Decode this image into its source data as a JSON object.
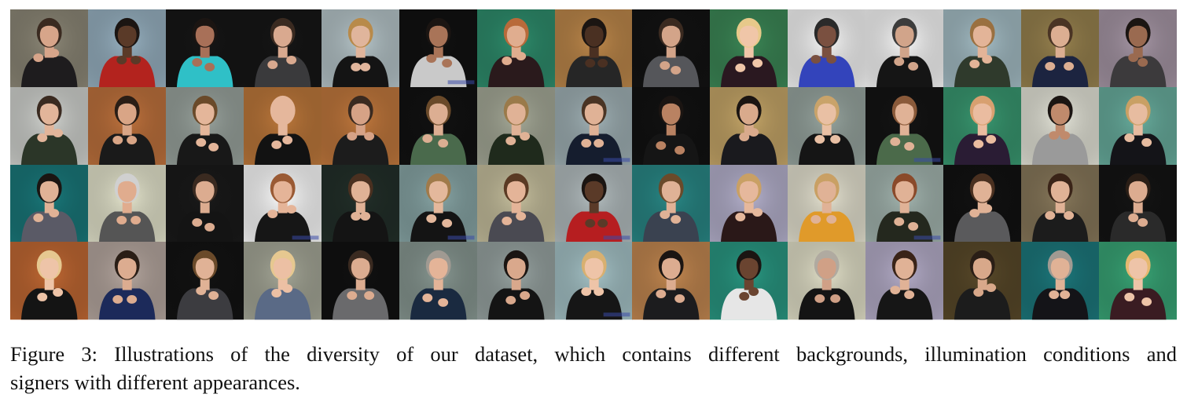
{
  "figure": {
    "rows": 4,
    "cols": 15,
    "cells": [
      {
        "bg": "#8f8a79",
        "shirt": "#1e1c1e",
        "skin": "#d7a58a",
        "hair": "#3a2a20",
        "wm": false
      },
      {
        "bg": "#9ab4c4",
        "shirt": "#b3231e",
        "skin": "#5a3a28",
        "hair": "#1b1512",
        "wm": false
      },
      {
        "bg": "#161616",
        "shirt": "#2fc0c7",
        "skin": "#a87058",
        "hair": "#1b1512",
        "wm": false
      },
      {
        "bg": "#161616",
        "shirt": "#3a3a3c",
        "skin": "#d9a98f",
        "hair": "#3a2a20",
        "wm": false
      },
      {
        "bg": "#b9c8cc",
        "shirt": "#141414",
        "skin": "#e0b59c",
        "hair": "#b88a4a",
        "wm": false
      },
      {
        "bg": "#111111",
        "shirt": "#c9c9c9",
        "skin": "#a97458",
        "hair": "#1b1512",
        "wm": true
      },
      {
        "bg": "#2f8f6e",
        "shirt": "#2a1a1c",
        "skin": "#e0ad8f",
        "hair": "#b86a3a",
        "wm": false
      },
      {
        "bg": "#c08a4c",
        "shirt": "#262626",
        "skin": "#4a3022",
        "hair": "#1b1512",
        "wm": false
      },
      {
        "bg": "#131313",
        "shirt": "#55565a",
        "skin": "#d3a489",
        "hair": "#3a2a20",
        "wm": false
      },
      {
        "bg": "#3d8a58",
        "shirt": "#2a1820",
        "skin": "#f0c6a8",
        "hair": "#e7c98a",
        "wm": false
      },
      {
        "bg": "#fafafa",
        "shirt": "#3344bb",
        "skin": "#7a5040",
        "hair": "#2a2a2a",
        "wm": false
      },
      {
        "bg": "#fbfbfb",
        "shirt": "#151515",
        "skin": "#d1a48a",
        "hair": "#3c3c3c",
        "wm": false
      },
      {
        "bg": "#a7c0c8",
        "shirt": "#2f3a2c",
        "skin": "#e3b498",
        "hair": "#9a7040",
        "wm": false
      },
      {
        "bg": "#9a8450",
        "shirt": "#1c2440",
        "skin": "#dcae92",
        "hair": "#4a3424",
        "wm": false
      },
      {
        "bg": "#a999a8",
        "shirt": "#3c3a3c",
        "skin": "#9a6a50",
        "hair": "#1b1512",
        "wm": false
      },
      {
        "bg": "#d4d6d2",
        "shirt": "#2b3628",
        "skin": "#e2b59a",
        "hair": "#3a2a20",
        "wm": false
      },
      {
        "bg": "#c2743e",
        "shirt": "#1a1a1a",
        "skin": "#d9a586",
        "hair": "#2a1e16",
        "wm": false
      },
      {
        "bg": "#9ca6a0",
        "shirt": "#181818",
        "skin": "#e4b69a",
        "hair": "#6a4a2a",
        "wm": false
      },
      {
        "bg": "#c07a3c",
        "shirt": "#121212",
        "skin": "#e5b79c",
        "hair": "#e5b79c",
        "wm": false
      },
      {
        "bg": "#c47a3e",
        "shirt": "#1c1c1c",
        "skin": "#d6a286",
        "hair": "#3a2a20",
        "wm": false
      },
      {
        "bg": "#121212",
        "shirt": "#4a6a4c",
        "skin": "#dcae92",
        "hair": "#6a4a2a",
        "wm": false
      },
      {
        "bg": "#a8ac9a",
        "shirt": "#1f2a1c",
        "skin": "#e0b296",
        "hair": "#9a7a4a",
        "wm": false
      },
      {
        "bg": "#a3b4b8",
        "shirt": "#151d2e",
        "skin": "#e0b296",
        "hair": "#4a3424",
        "wm": true
      },
      {
        "bg": "#121212",
        "shirt": "#151515",
        "skin": "#b98262",
        "hair": "#1b1512",
        "wm": false
      },
      {
        "bg": "#c9a96a",
        "shirt": "#1a1a1e",
        "skin": "#d9aa8c",
        "hair": "#1b1512",
        "wm": false
      },
      {
        "bg": "#9aa8a2",
        "shirt": "#151515",
        "skin": "#e9c0a4",
        "hair": "#c9a36a",
        "wm": false
      },
      {
        "bg": "#141414",
        "shirt": "#4b6a4a",
        "skin": "#e0b296",
        "hair": "#8a5a3a",
        "wm": true
      },
      {
        "bg": "#3a9a72",
        "shirt": "#2a1c34",
        "skin": "#eabca0",
        "hair": "#d8a070",
        "wm": false
      },
      {
        "bg": "#e8e8dc",
        "shirt": "#9a9a9a",
        "skin": "#c08a6c",
        "hair": "#1b1512",
        "wm": false
      },
      {
        "bg": "#6ab0a0",
        "shirt": "#141418",
        "skin": "#e7bca0",
        "hair": "#c9a064",
        "wm": false
      },
      {
        "bg": "#1a7a7c",
        "shirt": "#5a5a66",
        "skin": "#e0b296",
        "hair": "#1b1512",
        "wm": false
      },
      {
        "bg": "#e8e8d0",
        "shirt": "#555555",
        "skin": "#e0ac8e",
        "hair": "#d0d0d0",
        "wm": false
      },
      {
        "bg": "#1a1a1a",
        "shirt": "#141414",
        "skin": "#dcac90",
        "hair": "#3a2a20",
        "wm": false
      },
      {
        "bg": "#ffffff",
        "shirt": "#161616",
        "skin": "#e5b498",
        "hair": "#9a5a34",
        "wm": true
      },
      {
        "bg": "#23302a",
        "shirt": "#141414",
        "skin": "#e0b296",
        "hair": "#4a3020",
        "wm": false
      },
      {
        "bg": "#8aa8a8",
        "shirt": "#141414",
        "skin": "#e4b89c",
        "hair": "#a07a4a",
        "wm": true
      },
      {
        "bg": "#c9c2a0",
        "shirt": "#4a4a52",
        "skin": "#e4b498",
        "hair": "#5a3a24",
        "wm": false
      },
      {
        "bg": "#b6c0c2",
        "shirt": "#b61e20",
        "skin": "#5a3a28",
        "hair": "#1b1512",
        "wm": true
      },
      {
        "bg": "#2a8a88",
        "shirt": "#3a4250",
        "skin": "#e0b296",
        "hair": "#6a4a2a",
        "wm": false
      },
      {
        "bg": "#b8b4d0",
        "shirt": "#2a1818",
        "skin": "#e6b89c",
        "hair": "#c9a064",
        "wm": false
      },
      {
        "bg": "#e9e6d4",
        "shirt": "#e09a2a",
        "skin": "#e0b296",
        "hair": "#c9a064",
        "wm": false
      },
      {
        "bg": "#a6b8b2",
        "shirt": "#24281e",
        "skin": "#e0b296",
        "hair": "#8a4a2a",
        "wm": true
      },
      {
        "bg": "#121212",
        "shirt": "#5a5a5c",
        "skin": "#e0b296",
        "hair": "#4a3020",
        "wm": false
      },
      {
        "bg": "#8a7a5c",
        "shirt": "#1c1c1c",
        "skin": "#e0b296",
        "hair": "#3a2418",
        "wm": false
      },
      {
        "bg": "#141414",
        "shirt": "#2a2a2a",
        "skin": "#dcac90",
        "hair": "#2a1e16",
        "wm": false
      },
      {
        "bg": "#c46a34",
        "shirt": "#141414",
        "skin": "#eec4a8",
        "hair": "#e6c890",
        "wm": false
      },
      {
        "bg": "#b9aaa2",
        "shirt": "#1c2a5a",
        "skin": "#dcac90",
        "hair": "#2a1e16",
        "wm": false
      },
      {
        "bg": "#131313",
        "shirt": "#3c3c40",
        "skin": "#e0b296",
        "hair": "#6a4a2a",
        "wm": false
      },
      {
        "bg": "#a8aa9a",
        "shirt": "#5a6a86",
        "skin": "#ecc0a4",
        "hair": "#e6c890",
        "wm": false
      },
      {
        "bg": "#111111",
        "shirt": "#6a6a6c",
        "skin": "#dcac90",
        "hair": "#3a2a20",
        "wm": false
      },
      {
        "bg": "#8a9a94",
        "shirt": "#1a2a40",
        "skin": "#e4b498",
        "hair": "#a09a92",
        "wm": false
      },
      {
        "bg": "#9aa6a4",
        "shirt": "#141414",
        "skin": "#d9a88c",
        "hair": "#1b1512",
        "wm": false
      },
      {
        "bg": "#a8c6ca",
        "shirt": "#161616",
        "skin": "#eec4a8",
        "hair": "#d8b070",
        "wm": true
      },
      {
        "bg": "#c68a52",
        "shirt": "#1c1c1e",
        "skin": "#dcac90",
        "hair": "#1b1512",
        "wm": false
      },
      {
        "bg": "#2a9a84",
        "shirt": "#e6e6e6",
        "skin": "#6a4430",
        "hair": "#1b1512",
        "wm": false
      },
      {
        "bg": "#e6e4cc",
        "shirt": "#141414",
        "skin": "#d0a086",
        "hair": "#b0aaa0",
        "wm": false
      },
      {
        "bg": "#b8b0cc",
        "shirt": "#161616",
        "skin": "#e0b296",
        "hair": "#3a2418",
        "wm": false
      },
      {
        "bg": "#5a4a2a",
        "shirt": "#1c1c1c",
        "skin": "#d8a88a",
        "hair": "#2a1e16",
        "wm": false
      },
      {
        "bg": "#1d7a7e",
        "shirt": "#141418",
        "skin": "#e0b296",
        "hair": "#a09a92",
        "wm": false
      },
      {
        "bg": "#3aa878",
        "shirt": "#3a1c22",
        "skin": "#eec4a8",
        "hair": "#e6b870",
        "wm": false
      }
    ]
  },
  "caption": {
    "line1": "Figure 3:  Illustrations of the diversity of our dataset, which contains different backgrounds, illumination conditions and",
    "line2": "signers with different appearances."
  }
}
